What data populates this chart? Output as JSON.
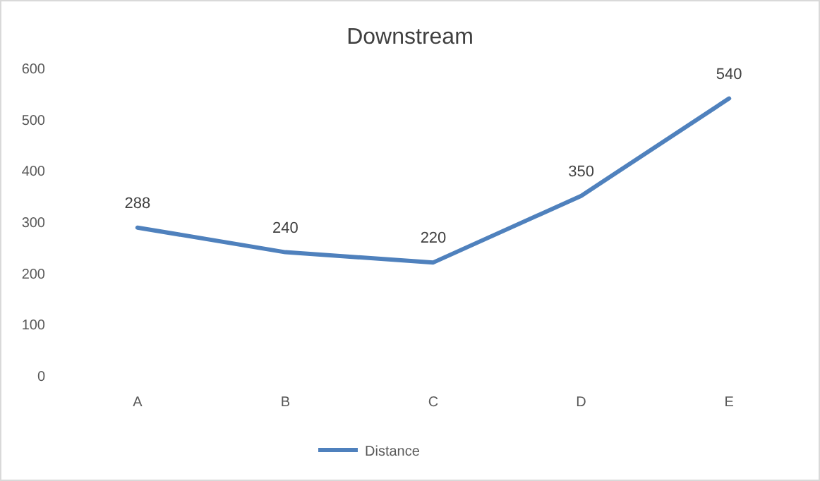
{
  "chart_data": {
    "type": "line",
    "title": "Downstream",
    "categories": [
      "A",
      "B",
      "C",
      "D",
      "E"
    ],
    "series": [
      {
        "name": "Distance",
        "color": "#4f81bd",
        "values": [
          288,
          240,
          220,
          350,
          540
        ]
      }
    ],
    "ylim": [
      0,
      600
    ],
    "yticks": [
      0,
      100,
      200,
      300,
      400,
      500,
      600
    ],
    "grid": false,
    "legend": "bottom",
    "data_labels": true,
    "marker": "none",
    "line_style": "solid"
  }
}
